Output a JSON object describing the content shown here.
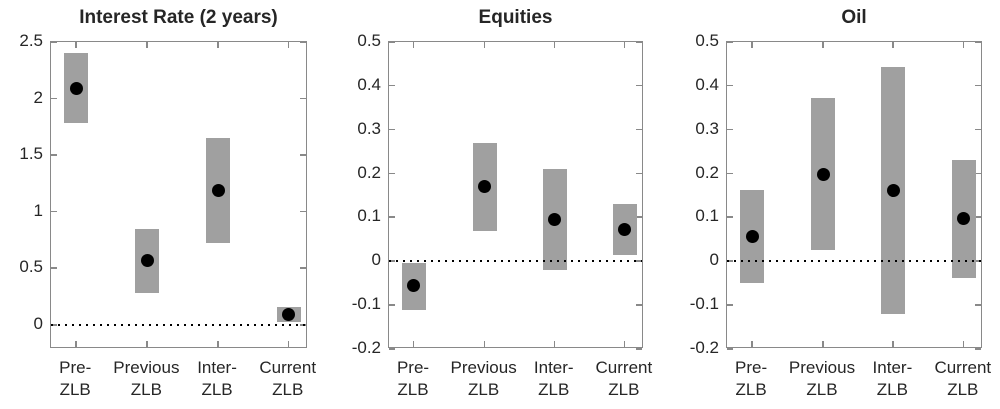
{
  "colors": {
    "background": "#ffffff",
    "bar": "#a0a0a0",
    "axis": "#898989",
    "text": "#262626",
    "marker": "#000000",
    "zero_line": "#000000"
  },
  "category_lines": [
    [
      "Pre-",
      "ZLB"
    ],
    [
      "Previous",
      "ZLB"
    ],
    [
      "Inter-",
      "ZLB"
    ],
    [
      "Current",
      "ZLB"
    ]
  ],
  "chart_data": [
    {
      "type": "bar",
      "subtype": "range-bar-with-point-estimate",
      "title": "Interest Rate (2 years)",
      "categories": [
        "Pre-ZLB",
        "Previous ZLB",
        "Inter-ZLB",
        "Current ZLB"
      ],
      "ylim": [
        -0.212,
        2.5
      ],
      "yticks": [
        0,
        0.5,
        1,
        1.5,
        2,
        2.5
      ],
      "ytick_labels": [
        "0",
        "0.5",
        "1",
        "1.5",
        "2",
        "2.5"
      ],
      "zero_line": 0,
      "grid": false,
      "legend": "none",
      "series": [
        {
          "name": "range-low",
          "values": [
            1.78,
            0.28,
            0.72,
            0.03
          ]
        },
        {
          "name": "range-high",
          "values": [
            2.4,
            0.85,
            1.65,
            0.16
          ]
        },
        {
          "name": "point-estimate",
          "values": [
            2.09,
            0.57,
            1.19,
            0.095
          ]
        }
      ]
    },
    {
      "type": "bar",
      "subtype": "range-bar-with-point-estimate",
      "title": "Equities",
      "categories": [
        "Pre-ZLB",
        "Previous ZLB",
        "Inter-ZLB",
        "Current ZLB"
      ],
      "ylim": [
        -0.2,
        0.5
      ],
      "yticks": [
        -0.2,
        -0.1,
        0,
        0.1,
        0.2,
        0.3,
        0.4,
        0.5
      ],
      "ytick_labels": [
        "-0.2",
        "-0.1",
        "0",
        "0.1",
        "0.2",
        "0.3",
        "0.4",
        "0.5"
      ],
      "zero_line": 0,
      "grid": false,
      "legend": "none",
      "series": [
        {
          "name": "range-low",
          "values": [
            -0.11,
            0.07,
            -0.02,
            0.015
          ]
        },
        {
          "name": "range-high",
          "values": [
            -0.005,
            0.27,
            0.21,
            0.13
          ]
        },
        {
          "name": "point-estimate",
          "values": [
            -0.055,
            0.17,
            0.095,
            0.072
          ]
        }
      ]
    },
    {
      "type": "bar",
      "subtype": "range-bar-with-point-estimate",
      "title": "Oil",
      "categories": [
        "Pre-ZLB",
        "Previous ZLB",
        "Inter-ZLB",
        "Current ZLB"
      ],
      "ylim": [
        -0.2,
        0.5
      ],
      "yticks": [
        -0.2,
        -0.1,
        0,
        0.1,
        0.2,
        0.3,
        0.4,
        0.5
      ],
      "ytick_labels": [
        "-0.2",
        "-0.1",
        "0",
        "0.1",
        "0.2",
        "0.3",
        "0.4",
        "0.5"
      ],
      "zero_line": 0,
      "grid": false,
      "legend": "none",
      "series": [
        {
          "name": "range-low",
          "values": [
            -0.05,
            0.025,
            -0.12,
            -0.037
          ]
        },
        {
          "name": "range-high",
          "values": [
            0.163,
            0.373,
            0.443,
            0.23
          ]
        },
        {
          "name": "point-estimate",
          "values": [
            0.057,
            0.198,
            0.161,
            0.098
          ]
        }
      ]
    }
  ]
}
